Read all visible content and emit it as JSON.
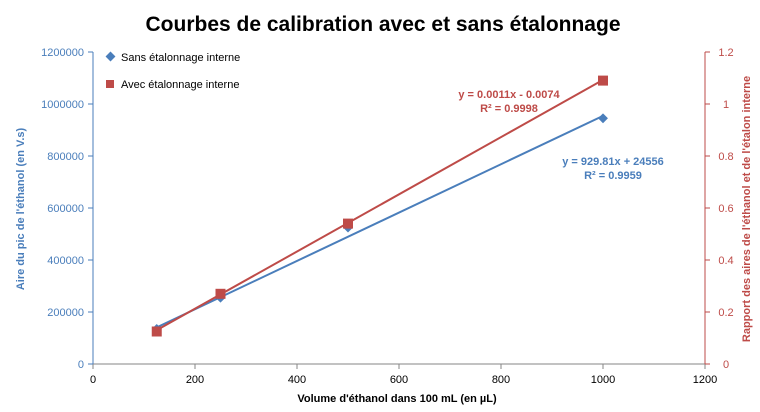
{
  "chart_data": {
    "type": "scatter",
    "title": "Courbes de calibration avec et sans étalonnage",
    "xlabel": "Volume d'éthanol dans 100 mL (en µL)",
    "ylabel_left": "Aire du pic de l'éthanol (en V.s)",
    "ylabel_right": "Rapport des aires de l'éthanol et de l'étalon interne",
    "xlim": [
      0,
      1200
    ],
    "xticks": [
      "0",
      "200",
      "400",
      "600",
      "800",
      "1000",
      "1200"
    ],
    "ylim_left": [
      0,
      1200000
    ],
    "yticks_left": [
      "0",
      "200000",
      "400000",
      "600000",
      "800000",
      "1000000",
      "1200000"
    ],
    "ylim_right": [
      0,
      1.2
    ],
    "yticks_right": [
      "0",
      "0.2",
      "0.4",
      "0.6",
      "0.8",
      "1",
      "1.2"
    ],
    "grid": false,
    "legend": "top-left",
    "series": [
      {
        "name": "Sans étalonnage interne",
        "axis": "left",
        "marker": "diamond",
        "color": "#4a7ebb",
        "x": [
          125,
          250,
          500,
          1000
        ],
        "y": [
          135000,
          255000,
          525000,
          945000
        ],
        "trendline": {
          "slope": 929.81,
          "intercept": 24556,
          "x_range": [
            125,
            1000
          ]
        },
        "equation": "y = 929.81x  + 24556",
        "r2": "R² = 0.9959"
      },
      {
        "name": "Avec étalonnage interne",
        "axis": "right",
        "marker": "square",
        "color": "#be4b48",
        "x": [
          125,
          250,
          500,
          1000
        ],
        "y": [
          0.125,
          0.27,
          0.54,
          1.09
        ],
        "trendline": {
          "slope": 0.0011,
          "intercept": -0.0074,
          "x_range": [
            125,
            1000
          ]
        },
        "equation": "y = 0.0011x  - 0.0074",
        "r2": "R² = 0.9998"
      }
    ]
  }
}
